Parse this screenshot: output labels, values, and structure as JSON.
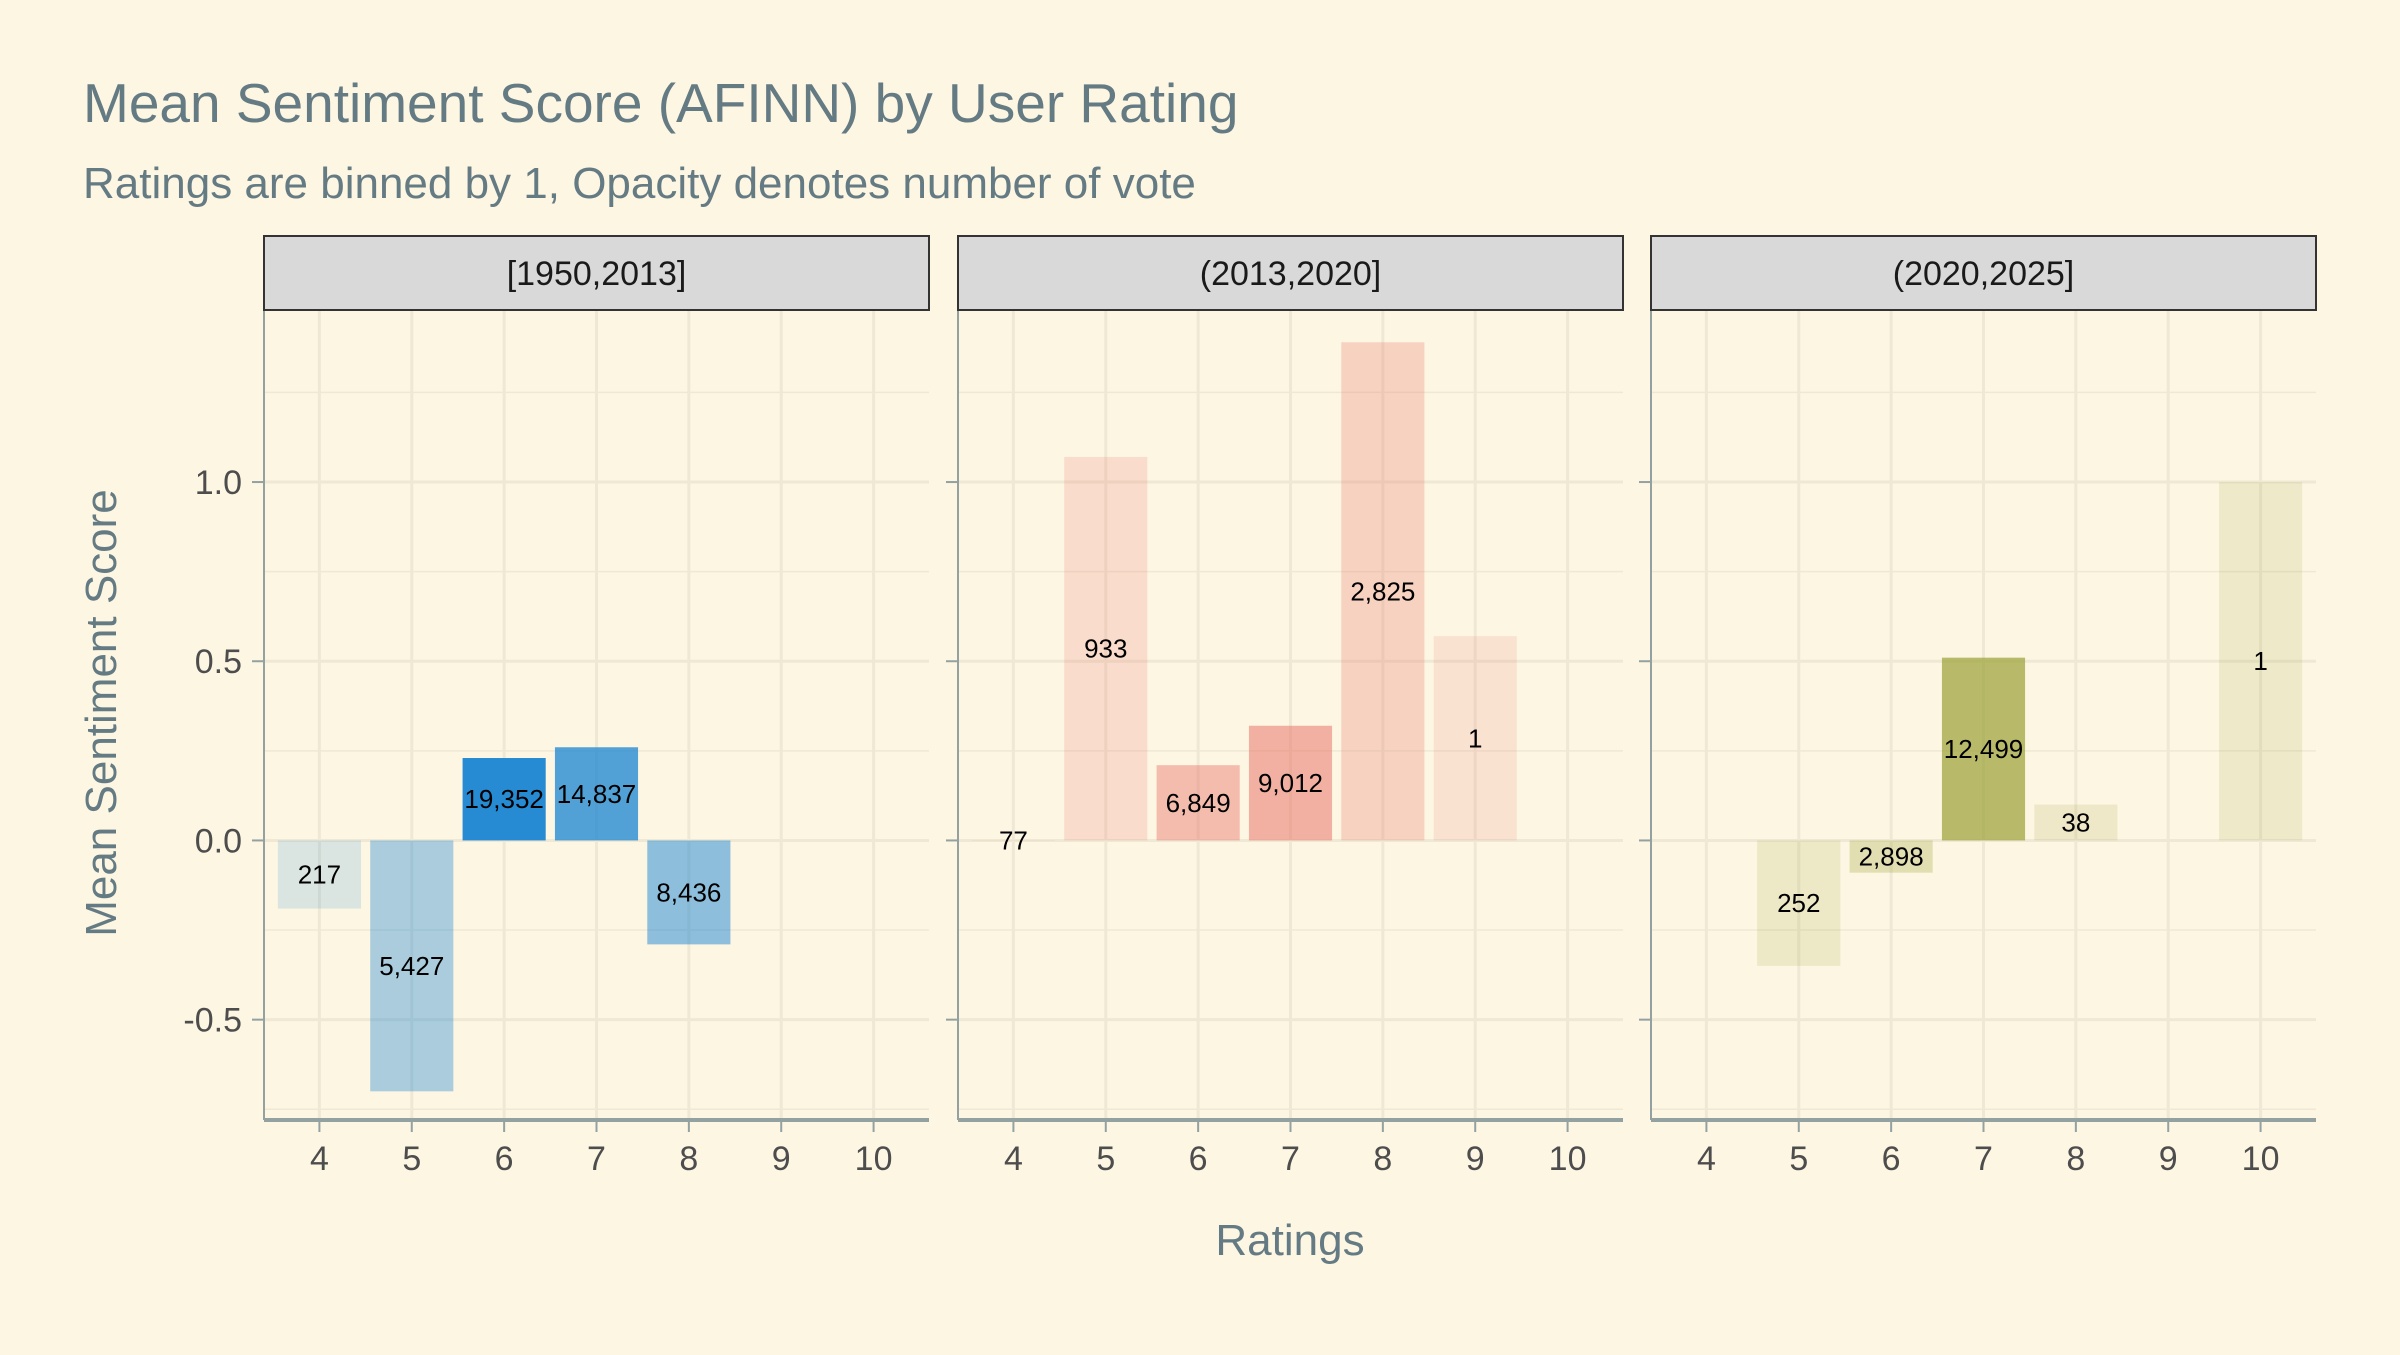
{
  "chart_data": {
    "type": "bar",
    "title": "Mean Sentiment Score (AFINN) by User Rating",
    "subtitle": "Ratings are binned by 1, Opacity denotes number of vote",
    "xlabel": "Ratings",
    "ylabel": "Mean Sentiment Score",
    "x_ticks": [
      "4",
      "5",
      "6",
      "7",
      "8",
      "9",
      "10"
    ],
    "y_ticks": [
      {
        "value": -0.5,
        "label": "-0.5"
      },
      {
        "value": 0.0,
        "label": "0.0"
      },
      {
        "value": 0.5,
        "label": "0.5"
      },
      {
        "value": 1.0,
        "label": "1.0"
      }
    ],
    "ylim": [
      -0.78,
      1.48
    ],
    "grid": true,
    "colors": {
      "background": "#fdf6e3",
      "strip": "#d9d9d9",
      "grid": "#efe8d4",
      "axis": "#93a1a1",
      "text": "#657b83"
    },
    "panels": [
      {
        "strip_label": "[1950,2013]",
        "color": "#268bd2",
        "bars": [
          {
            "rating": 4,
            "value": -0.19,
            "votes": 217,
            "label": "217"
          },
          {
            "rating": 5,
            "value": -0.7,
            "votes": 5427,
            "label": "5,427"
          },
          {
            "rating": 6,
            "value": 0.23,
            "votes": 19352,
            "label": "19,352"
          },
          {
            "rating": 7,
            "value": 0.26,
            "votes": 14837,
            "label": "14,837"
          },
          {
            "rating": 8,
            "value": -0.29,
            "votes": 8436,
            "label": "8,436"
          }
        ]
      },
      {
        "strip_label": "(2013,2020]",
        "color": "#e8756a",
        "bars": [
          {
            "rating": 4,
            "value": 0.0,
            "votes": 77,
            "label": "77"
          },
          {
            "rating": 5,
            "value": 1.07,
            "votes": 933,
            "label": "933"
          },
          {
            "rating": 6,
            "value": 0.21,
            "votes": 6849,
            "label": "6,849"
          },
          {
            "rating": 7,
            "value": 0.32,
            "votes": 9012,
            "label": "9,012"
          },
          {
            "rating": 8,
            "value": 1.39,
            "votes": 2825,
            "label": "2,825"
          },
          {
            "rating": 9,
            "value": 0.57,
            "votes": 1,
            "label": "1"
          }
        ]
      },
      {
        "strip_label": "(2020,2025]",
        "color": "#9aa033",
        "bars": [
          {
            "rating": 5,
            "value": -0.35,
            "votes": 252,
            "label": "252"
          },
          {
            "rating": 6,
            "value": -0.09,
            "votes": 2898,
            "label": "2,898"
          },
          {
            "rating": 7,
            "value": 0.51,
            "votes": 12499,
            "label": "12,499"
          },
          {
            "rating": 8,
            "value": 0.1,
            "votes": 38,
            "label": "38"
          },
          {
            "rating": 10,
            "value": 1.0,
            "votes": 1,
            "label": "1"
          }
        ]
      }
    ]
  }
}
